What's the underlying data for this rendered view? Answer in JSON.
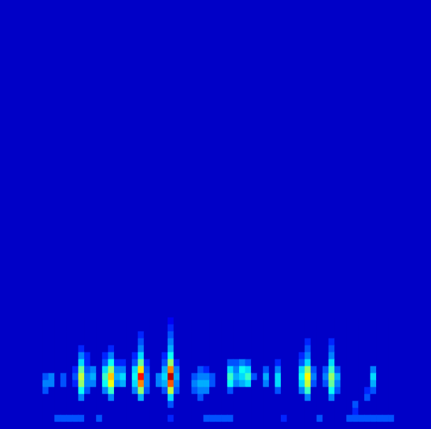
{
  "chart_data": {
    "type": "heatmap",
    "x": [
      0,
      1,
      2,
      3,
      4,
      5,
      6,
      7,
      8,
      9,
      10,
      11,
      12,
      13,
      14,
      15,
      16,
      17,
      18,
      19,
      20,
      21,
      22,
      23,
      24,
      25,
      26,
      27,
      28,
      29,
      30,
      31,
      32,
      33,
      34,
      35,
      36,
      37,
      38,
      39,
      40,
      41,
      42,
      43,
      44,
      45,
      46,
      47,
      48,
      49,
      50,
      51,
      52,
      53,
      54,
      55,
      56,
      57,
      58,
      59,
      60,
      61
    ],
    "y": [
      0.5,
      1.5,
      2.5,
      3.5,
      4.5,
      5.5,
      6.5,
      7.5,
      8.5,
      9.5,
      10.5,
      11.5,
      12.5,
      13.5,
      14.5,
      15.5
    ],
    "xlim": [
      -0.5,
      61.5
    ],
    "ylim": [
      0,
      61.6
    ],
    "cells": [
      [
        0,
        0,
        0,
        0,
        0,
        0,
        0,
        0,
        0,
        0,
        0,
        0,
        0,
        0,
        0,
        0,
        0,
        0,
        0,
        0,
        0,
        0,
        0,
        0,
        0,
        0,
        0,
        0,
        0,
        0,
        0,
        0,
        0,
        0,
        0,
        0,
        0,
        0,
        0,
        0,
        0,
        0,
        0,
        0,
        0,
        0,
        0,
        0,
        0,
        0,
        0,
        0,
        0,
        0,
        0,
        0,
        0,
        0,
        0,
        0,
        0,
        0
      ],
      [
        0,
        0,
        0,
        0,
        0.15,
        0.15,
        0.15,
        0.15,
        0.15,
        0,
        0,
        0.15,
        0,
        0,
        0,
        0,
        0,
        0,
        0,
        0,
        0,
        0,
        0,
        0.1,
        0,
        0,
        0,
        0,
        0,
        0.15,
        0.15,
        0.15,
        0.15,
        0.15,
        0,
        0,
        0,
        0,
        0,
        0,
        0,
        0,
        0.1,
        0,
        0,
        0,
        0,
        0,
        0.15,
        0,
        0,
        0,
        0,
        0.15,
        0.15,
        0.15,
        0.15,
        0.15,
        0.15,
        0.15,
        0.15,
        0
      ],
      [
        0,
        0,
        0,
        0,
        0,
        0,
        0,
        0,
        0,
        0,
        0,
        0,
        0,
        0,
        0,
        0,
        0,
        0,
        0,
        0,
        0,
        0,
        0,
        0,
        0,
        0,
        0,
        0,
        0,
        0,
        0,
        0,
        0,
        0,
        0,
        0,
        0,
        0,
        0,
        0,
        0,
        0,
        0,
        0,
        0,
        0,
        0,
        0,
        0,
        0,
        0,
        0,
        0,
        0,
        0.1,
        0,
        0,
        0,
        0,
        0,
        0,
        0
      ],
      [
        0,
        0,
        0,
        0,
        0,
        0,
        0,
        0,
        0,
        0,
        0,
        0,
        0,
        0,
        0,
        0,
        0,
        0,
        0,
        0,
        0,
        0,
        0,
        0.15,
        0,
        0,
        0,
        0,
        0,
        0,
        0,
        0,
        0,
        0,
        0,
        0,
        0,
        0,
        0,
        0,
        0,
        0,
        0,
        0,
        0,
        0,
        0,
        0,
        0,
        0,
        0,
        0,
        0,
        0,
        0.15,
        0,
        0,
        0,
        0,
        0,
        0,
        0
      ],
      [
        0,
        0,
        0,
        0,
        0,
        0,
        0,
        0,
        0.2,
        0,
        0,
        0,
        0,
        0.2,
        0,
        0,
        0,
        0,
        0.25,
        0,
        0,
        0,
        0,
        0.3,
        0,
        0,
        0,
        0,
        0.15,
        0,
        0,
        0,
        0,
        0,
        0,
        0,
        0,
        0,
        0,
        0,
        0,
        0,
        0,
        0,
        0,
        0,
        0.2,
        0,
        0,
        0,
        0.2,
        0,
        0,
        0,
        0,
        0,
        0.15,
        0,
        0,
        0,
        0,
        0
      ],
      [
        0,
        0,
        0.15,
        0,
        0,
        0,
        0,
        0,
        0.35,
        0.15,
        0,
        0,
        0.2,
        0.4,
        0,
        0,
        0,
        0.2,
        0.5,
        0.15,
        0,
        0,
        0.15,
        0.55,
        0.15,
        0,
        0,
        0.15,
        0.2,
        0.2,
        0,
        0,
        0,
        0.15,
        0,
        0,
        0,
        0,
        0,
        0,
        0,
        0.15,
        0,
        0,
        0,
        0.2,
        0.4,
        0,
        0,
        0,
        0.35,
        0.15,
        0,
        0,
        0,
        0,
        0.1,
        0.15,
        0,
        0,
        0,
        0
      ],
      [
        0,
        0,
        0.2,
        0.2,
        0,
        0.15,
        0,
        0.1,
        0.5,
        0.2,
        0.2,
        0,
        0.35,
        0.6,
        0.2,
        0.25,
        0,
        0.3,
        0.75,
        0.2,
        0,
        0.2,
        0.25,
        0.8,
        0.2,
        0,
        0,
        0.2,
        0.25,
        0.25,
        0.15,
        0,
        0,
        0.35,
        0.2,
        0.25,
        0.3,
        0,
        0,
        0.2,
        0,
        0.3,
        0,
        0,
        0,
        0.3,
        0.55,
        0.15,
        0,
        0.15,
        0.45,
        0.2,
        0,
        0,
        0,
        0,
        0,
        0.25,
        0,
        0,
        0,
        0
      ],
      [
        0,
        0,
        0.15,
        0.2,
        0,
        0.15,
        0,
        0.15,
        0.55,
        0.2,
        0.25,
        0,
        0.4,
        0.68,
        0.25,
        0.3,
        0,
        0.35,
        0.88,
        0.2,
        0,
        0.2,
        0.3,
        0.97,
        0.25,
        0,
        0,
        0.15,
        0.2,
        0.2,
        0.15,
        0,
        0,
        0.4,
        0.25,
        0.3,
        0.4,
        0.15,
        0,
        0.25,
        0,
        0.3,
        0,
        0,
        0,
        0.35,
        0.62,
        0.2,
        0,
        0.2,
        0.5,
        0.25,
        0,
        0,
        0,
        0,
        0,
        0.3,
        0,
        0,
        0,
        0
      ],
      [
        0,
        0,
        0,
        0,
        0,
        0,
        0,
        0.1,
        0.45,
        0.15,
        0.2,
        0,
        0.3,
        0.5,
        0.2,
        0.2,
        0,
        0.3,
        0.65,
        0.15,
        0,
        0,
        0.25,
        0.75,
        0.2,
        0,
        0,
        0,
        0.15,
        0.1,
        0,
        0,
        0,
        0.3,
        0.2,
        0.35,
        0.3,
        0,
        0,
        0.15,
        0,
        0.2,
        0,
        0,
        0,
        0.3,
        0.5,
        0.15,
        0,
        0.15,
        0.4,
        0.15,
        0,
        0,
        0,
        0,
        0,
        0.2,
        0,
        0,
        0,
        0
      ],
      [
        0,
        0,
        0,
        0,
        0,
        0,
        0,
        0,
        0.3,
        0.1,
        0,
        0,
        0.15,
        0.35,
        0.1,
        0.1,
        0,
        0.15,
        0.45,
        0.1,
        0,
        0,
        0.15,
        0.5,
        0.1,
        0,
        0,
        0,
        0,
        0,
        0,
        0,
        0,
        0.15,
        0.15,
        0.2,
        0.15,
        0,
        0,
        0,
        0,
        0.1,
        0,
        0,
        0,
        0.15,
        0.3,
        0,
        0,
        0,
        0.3,
        0,
        0,
        0,
        0,
        0,
        0,
        0,
        0,
        0,
        0,
        0
      ],
      [
        0,
        0,
        0,
        0,
        0,
        0,
        0,
        0,
        0.2,
        0.1,
        0,
        0,
        0.1,
        0.2,
        0,
        0,
        0,
        0.1,
        0.3,
        0,
        0,
        0,
        0.1,
        0.35,
        0,
        0,
        0,
        0,
        0,
        0,
        0,
        0,
        0,
        0,
        0,
        0,
        0,
        0,
        0,
        0,
        0,
        0,
        0,
        0,
        0,
        0.1,
        0.2,
        0,
        0,
        0,
        0.2,
        0,
        0,
        0,
        0,
        0,
        0,
        0,
        0,
        0,
        0,
        0
      ],
      [
        0,
        0,
        0,
        0,
        0,
        0,
        0,
        0,
        0.1,
        0,
        0,
        0,
        0,
        0.1,
        0,
        0,
        0,
        0,
        0.2,
        0,
        0,
        0,
        0,
        0.25,
        0,
        0,
        0,
        0,
        0,
        0,
        0,
        0,
        0,
        0,
        0,
        0,
        0,
        0,
        0,
        0,
        0,
        0,
        0,
        0,
        0,
        0,
        0.15,
        0,
        0,
        0,
        0.15,
        0,
        0,
        0,
        0,
        0,
        0,
        0,
        0,
        0,
        0,
        0
      ],
      [
        0,
        0,
        0,
        0,
        0,
        0,
        0,
        0,
        0,
        0,
        0,
        0,
        0,
        0,
        0,
        0,
        0,
        0,
        0.15,
        0,
        0,
        0,
        0,
        0.2,
        0,
        0,
        0,
        0,
        0,
        0,
        0,
        0,
        0,
        0,
        0,
        0,
        0,
        0,
        0,
        0,
        0,
        0,
        0,
        0,
        0,
        0,
        0.1,
        0,
        0,
        0,
        0.1,
        0,
        0,
        0,
        0,
        0,
        0,
        0,
        0,
        0,
        0,
        0
      ],
      [
        0,
        0,
        0,
        0,
        0,
        0,
        0,
        0,
        0,
        0,
        0,
        0,
        0,
        0,
        0,
        0,
        0,
        0,
        0.1,
        0,
        0,
        0,
        0,
        0.15,
        0,
        0,
        0,
        0,
        0,
        0,
        0,
        0,
        0,
        0,
        0,
        0,
        0,
        0,
        0,
        0,
        0,
        0,
        0,
        0,
        0,
        0,
        0,
        0,
        0,
        0,
        0,
        0,
        0,
        0,
        0,
        0,
        0,
        0,
        0,
        0,
        0,
        0
      ],
      [
        0,
        0,
        0,
        0,
        0,
        0,
        0,
        0,
        0,
        0,
        0,
        0,
        0,
        0,
        0,
        0,
        0,
        0,
        0,
        0,
        0,
        0,
        0,
        0.1,
        0,
        0,
        0,
        0,
        0,
        0,
        0,
        0,
        0,
        0,
        0,
        0,
        0,
        0,
        0,
        0,
        0,
        0,
        0,
        0,
        0,
        0,
        0,
        0,
        0,
        0,
        0,
        0,
        0,
        0,
        0,
        0,
        0,
        0,
        0,
        0,
        0,
        0
      ],
      [
        0,
        0,
        0,
        0,
        0,
        0,
        0,
        0,
        0,
        0,
        0,
        0,
        0,
        0,
        0,
        0,
        0,
        0,
        0,
        0,
        0,
        0,
        0,
        0.05,
        0,
        0,
        0,
        0,
        0,
        0,
        0,
        0,
        0,
        0,
        0,
        0,
        0,
        0,
        0,
        0,
        0,
        0,
        0,
        0,
        0,
        0,
        0,
        0,
        0,
        0,
        0,
        0,
        0,
        0,
        0,
        0,
        0,
        0,
        0,
        0,
        0,
        0
      ]
    ],
    "color_range": [
      0,
      1
    ],
    "grid": false,
    "tick_labels": false
  }
}
